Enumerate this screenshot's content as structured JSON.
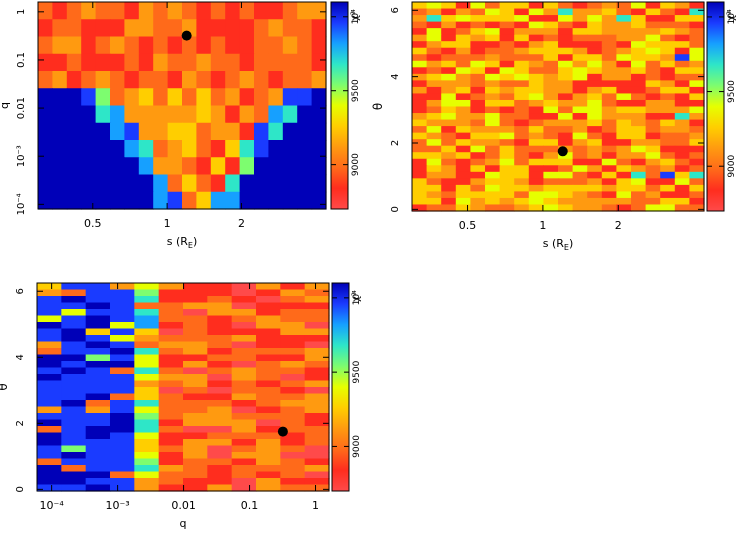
{
  "colorbar": {
    "label": "χ²",
    "ticks": [
      "9000",
      "9500",
      "10⁴"
    ],
    "range": [
      8700,
      10100
    ],
    "colors": [
      "#ff4a4a",
      "#ff2d1e",
      "#ff6a1a",
      "#ff9a10",
      "#ffce00",
      "#e6ff00",
      "#7dfd6f",
      "#2ee6c8",
      "#16a0ff",
      "#1a3bff",
      "#0000b8"
    ]
  },
  "chart_data": [
    {
      "type": "heatmap",
      "id": "s-vs-q",
      "xlabel": "s (R",
      "xlabel_sub": "E",
      "xlabel_suffix": ")",
      "ylabel": "q",
      "xscale": "log",
      "yscale": "log",
      "xlim": [
        0.3,
        4.4
      ],
      "ylim": [
        8e-05,
        1.6
      ],
      "xticks": [
        {
          "v": 0.5,
          "label": "0.5"
        },
        {
          "v": 1,
          "label": "1"
        },
        {
          "v": 2,
          "label": "2"
        }
      ],
      "yticks": [
        {
          "v": 0.0001,
          "label": "10⁻⁴"
        },
        {
          "v": 0.001,
          "label": "10⁻³"
        },
        {
          "v": 0.01,
          "label": "0.01"
        },
        {
          "v": 0.1,
          "label": "0.1"
        },
        {
          "v": 1,
          "label": "1"
        }
      ],
      "best_fit": {
        "x": 1.2,
        "y": 0.32
      },
      "grid_cols": 20,
      "grid_rows": 12
    },
    {
      "type": "heatmap",
      "id": "s-vs-theta",
      "xlabel": "s (R",
      "xlabel_sub": "E",
      "xlabel_suffix": ")",
      "ylabel": "θ",
      "xscale": "log",
      "yscale": "linear",
      "xlim": [
        0.3,
        4.4
      ],
      "ylim": [
        -0.05,
        6.25
      ],
      "xticks": [
        {
          "v": 0.5,
          "label": "0.5"
        },
        {
          "v": 1,
          "label": "1"
        },
        {
          "v": 2,
          "label": "2"
        }
      ],
      "yticks": [
        {
          "v": 0,
          "label": "0"
        },
        {
          "v": 2,
          "label": "2"
        },
        {
          "v": 4,
          "label": "4"
        },
        {
          "v": 6,
          "label": "6"
        }
      ],
      "best_fit": {
        "x": 1.2,
        "y": 1.75
      },
      "grid_cols": 20,
      "grid_rows": 32
    },
    {
      "type": "heatmap",
      "id": "q-vs-theta",
      "xlabel": "q",
      "xlabel_sub": "",
      "xlabel_suffix": "",
      "ylabel": "θ",
      "xscale": "log",
      "yscale": "linear",
      "xlim": [
        6e-05,
        1.6
      ],
      "ylim": [
        -0.05,
        6.25
      ],
      "xticks": [
        {
          "v": 0.0001,
          "label": "10⁻⁴"
        },
        {
          "v": 0.001,
          "label": "10⁻³"
        },
        {
          "v": 0.01,
          "label": "0.01"
        },
        {
          "v": 0.1,
          "label": "0.1"
        },
        {
          "v": 1,
          "label": "1"
        }
      ],
      "yticks": [
        {
          "v": 0,
          "label": "0"
        },
        {
          "v": 2,
          "label": "2"
        },
        {
          "v": 4,
          "label": "4"
        },
        {
          "v": 6,
          "label": "6"
        }
      ],
      "best_fit": {
        "x": 0.32,
        "y": 1.75
      },
      "grid_cols": 12,
      "grid_rows": 32
    }
  ]
}
